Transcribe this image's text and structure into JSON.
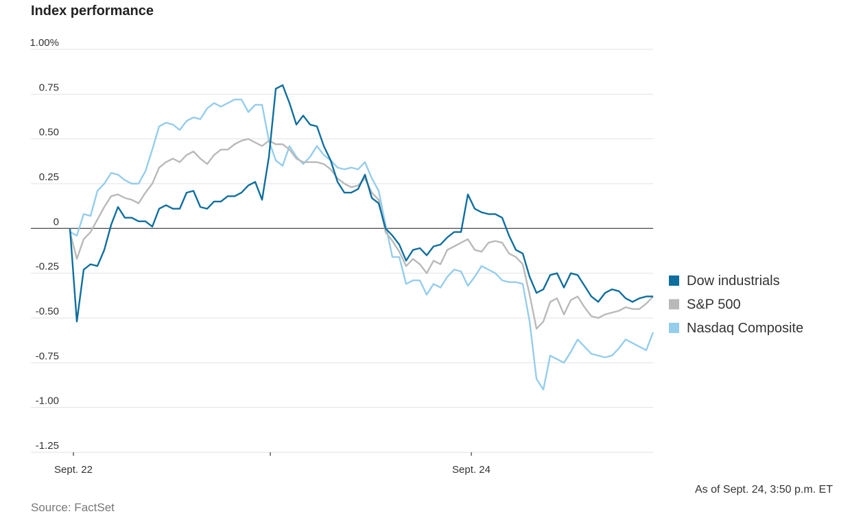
{
  "chart_data": {
    "type": "line",
    "title": "Index performance",
    "source": "Source: FactSet",
    "note": "As of Sept. 24, 3:50 p.m. ET",
    "categories": [
      "Sept. 22",
      null,
      null,
      null,
      null,
      null,
      null,
      null,
      null,
      null,
      null,
      null,
      null,
      null,
      null,
      null,
      null,
      null,
      null,
      null,
      null,
      null,
      null,
      null,
      null,
      null,
      null,
      null,
      null,
      null,
      null,
      null,
      null,
      null,
      null,
      null,
      null,
      null,
      null,
      null,
      null,
      null,
      null,
      null,
      null,
      null,
      null,
      null,
      null,
      null,
      null,
      null,
      null,
      null,
      null,
      null,
      null,
      null,
      "Sept. 24",
      null,
      null,
      null,
      null,
      null,
      null,
      null,
      null,
      null,
      null,
      null,
      null,
      null,
      null,
      null,
      null,
      null,
      null,
      null,
      null,
      null,
      null,
      null,
      null,
      null,
      null,
      null
    ],
    "ylim": [
      -1.25,
      1.0
    ],
    "yticks": [
      {
        "value": 1.0,
        "label": "1.00%"
      },
      0.75,
      {
        "value": 0.5,
        "label": "0.50"
      },
      0.25,
      0,
      -0.25,
      {
        "value": -0.5,
        "label": "-0.50"
      },
      -0.75,
      {
        "value": -1.0,
        "label": "-1.00"
      },
      -1.25
    ],
    "grid": true,
    "legend": "right",
    "series": [
      {
        "name": "Dow industrials",
        "color": "#0e6e9e",
        "values": [
          0,
          -0.52,
          -0.23,
          -0.2,
          -0.21,
          -0.12,
          0.02,
          0.12,
          0.06,
          0.06,
          0.04,
          0.04,
          0.01,
          0.11,
          0.13,
          0.11,
          0.11,
          0.2,
          0.21,
          0.12,
          0.11,
          0.15,
          0.15,
          0.18,
          0.18,
          0.2,
          0.24,
          0.26,
          0.16,
          0.4,
          0.78,
          0.8,
          0.7,
          0.58,
          0.63,
          0.58,
          0.57,
          0.46,
          0.38,
          0.26,
          0.2,
          0.2,
          0.22,
          0.3,
          0.17,
          0.14,
          0.0,
          -0.04,
          -0.09,
          -0.18,
          -0.12,
          -0.11,
          -0.15,
          -0.1,
          -0.09,
          -0.05,
          -0.02,
          -0.02,
          0.19,
          0.11,
          0.09,
          0.08,
          0.08,
          0.06,
          -0.04,
          -0.12,
          -0.14,
          -0.27,
          -0.36,
          -0.34,
          -0.26,
          -0.25,
          -0.33,
          -0.25,
          -0.26,
          -0.32,
          -0.38,
          -0.41,
          -0.36,
          -0.34,
          -0.35,
          -0.39,
          -0.41,
          -0.39,
          -0.38,
          -0.38
        ]
      },
      {
        "name": "S&P 500",
        "color": "#b9b9b9",
        "values": [
          -0.02,
          -0.17,
          -0.06,
          -0.02,
          0.05,
          0.12,
          0.18,
          0.19,
          0.17,
          0.16,
          0.14,
          0.2,
          0.25,
          0.34,
          0.37,
          0.39,
          0.37,
          0.41,
          0.43,
          0.39,
          0.36,
          0.41,
          0.44,
          0.44,
          0.47,
          0.49,
          0.5,
          0.48,
          0.46,
          0.49,
          0.47,
          0.47,
          0.44,
          0.39,
          0.37,
          0.37,
          0.37,
          0.36,
          0.33,
          0.28,
          0.25,
          0.23,
          0.24,
          0.28,
          0.2,
          0.16,
          -0.02,
          -0.07,
          -0.13,
          -0.21,
          -0.17,
          -0.2,
          -0.25,
          -0.18,
          -0.2,
          -0.12,
          -0.1,
          -0.08,
          -0.06,
          -0.12,
          -0.13,
          -0.08,
          -0.07,
          -0.08,
          -0.14,
          -0.16,
          -0.2,
          -0.37,
          -0.56,
          -0.52,
          -0.41,
          -0.39,
          -0.48,
          -0.4,
          -0.38,
          -0.44,
          -0.49,
          -0.5,
          -0.48,
          -0.47,
          -0.46,
          -0.44,
          -0.45,
          -0.45,
          -0.42,
          -0.38
        ]
      },
      {
        "name": "Nasdaq Composite",
        "color": "#95cdec",
        "values": [
          -0.02,
          -0.04,
          0.08,
          0.07,
          0.21,
          0.25,
          0.31,
          0.3,
          0.27,
          0.25,
          0.25,
          0.32,
          0.44,
          0.57,
          0.59,
          0.58,
          0.55,
          0.6,
          0.62,
          0.61,
          0.67,
          0.7,
          0.68,
          0.7,
          0.72,
          0.72,
          0.65,
          0.69,
          0.69,
          0.49,
          0.38,
          0.35,
          0.46,
          0.4,
          0.36,
          0.4,
          0.46,
          0.41,
          0.38,
          0.34,
          0.33,
          0.34,
          0.33,
          0.37,
          0.28,
          0.21,
          0.02,
          -0.16,
          -0.16,
          -0.31,
          -0.29,
          -0.29,
          -0.37,
          -0.31,
          -0.33,
          -0.27,
          -0.23,
          -0.24,
          -0.32,
          -0.27,
          -0.21,
          -0.23,
          -0.25,
          -0.29,
          -0.3,
          -0.3,
          -0.31,
          -0.52,
          -0.84,
          -0.9,
          -0.71,
          -0.73,
          -0.75,
          -0.69,
          -0.62,
          -0.66,
          -0.7,
          -0.71,
          -0.72,
          -0.71,
          -0.67,
          -0.62,
          -0.64,
          -0.66,
          -0.68,
          -0.58
        ]
      }
    ]
  }
}
